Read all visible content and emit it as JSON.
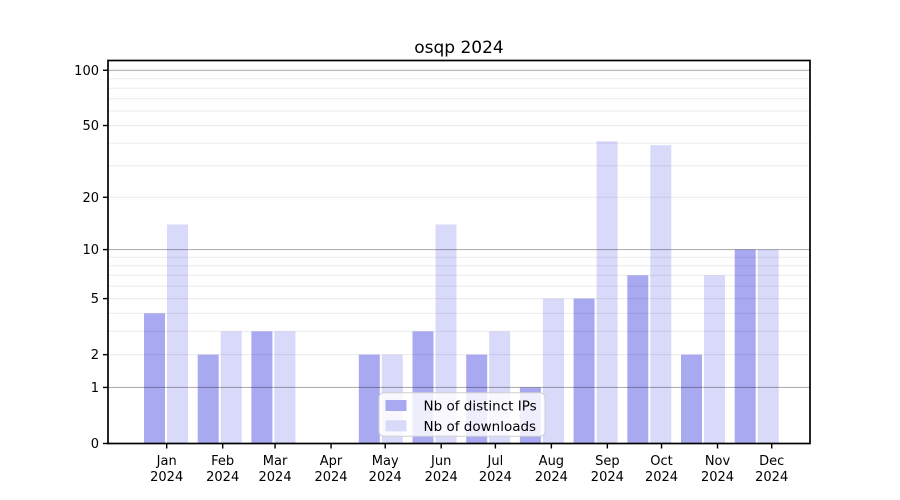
{
  "title": "osqp 2024",
  "chart_data": {
    "type": "bar",
    "title": "osqp 2024",
    "categories": [
      "Jan",
      "Feb",
      "Mar",
      "Apr",
      "May",
      "Jun",
      "Jul",
      "Aug",
      "Sep",
      "Oct",
      "Nov",
      "Dec"
    ],
    "year_label": "2024",
    "series": [
      {
        "name": "Nb of distinct IPs",
        "color": "#a9a9f2",
        "values": [
          4,
          2,
          3,
          0,
          2,
          3,
          2,
          1,
          5,
          7,
          2,
          10
        ]
      },
      {
        "name": "Nb of downloads",
        "color": "#d9d9fa",
        "values": [
          14,
          3,
          3,
          0,
          2,
          14,
          3,
          5,
          41,
          39,
          7,
          10
        ]
      }
    ],
    "y_scale": "log1p",
    "ylim": [
      0,
      113
    ],
    "y_ticks": [
      100,
      50,
      20,
      10,
      5,
      2,
      1,
      0
    ],
    "y_tick_labels": [
      "100",
      "50",
      "20",
      "10",
      "5",
      "2",
      "1",
      "0"
    ],
    "y_major_grid": [
      1,
      10,
      100
    ],
    "y_minor_grid": [
      2,
      3,
      4,
      5,
      6,
      7,
      8,
      9,
      20,
      30,
      40,
      50,
      60,
      70,
      80,
      90
    ],
    "grid": true,
    "legend_position": "lower center",
    "xlabel": "",
    "ylabel": ""
  },
  "colors": {
    "bar_ips": "#a9a9f2",
    "bar_downloads": "#d9d9fa",
    "major_grid": "rgba(0,0,0,0.30)",
    "minor_grid": "rgba(0,0,0,0.08)",
    "spine": "#000000",
    "legend_border": "#d0d0d0",
    "legend_bg": "rgba(255,255,255,0.8)"
  }
}
